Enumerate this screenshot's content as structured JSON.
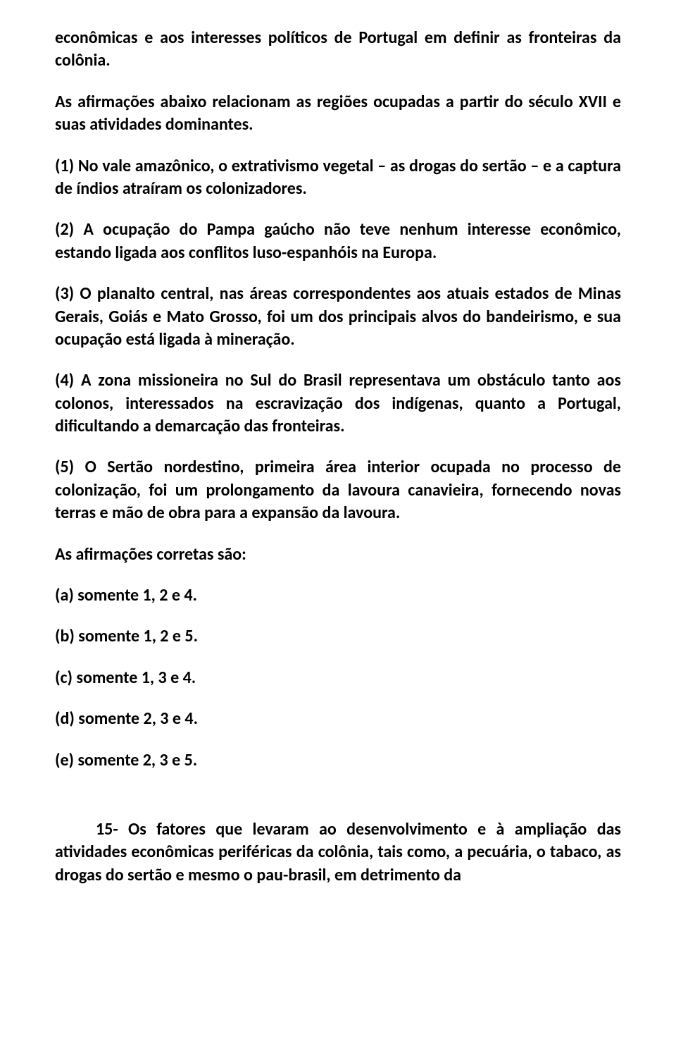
{
  "doc": {
    "text_color": "#000000",
    "background_color": "#ffffff",
    "font_family": "Calibri",
    "intro1": "econômicas e aos interesses políticos de Portugal em definir as fronteiras da colônia.",
    "intro2": "As afirmações abaixo relacionam as regiões ocupadas a partir do século XVII e suas atividades dominantes.",
    "stmt1": "(1) No vale amazônico, o extrativismo vegetal – as drogas do sertão – e a captura de índios atraíram os colonizadores.",
    "stmt2": "(2) A ocupação do Pampa gaúcho não teve nenhum interesse econômico, estando ligada aos conflitos luso-espanhóis na Europa.",
    "stmt3": "(3) O planalto central, nas áreas correspondentes aos atuais estados de Minas Gerais, Goiás e Mato Grosso, foi um dos principais alvos do bandeirismo, e sua ocupação está ligada à mineração.",
    "stmt4": "(4) A zona missioneira no Sul do Brasil representava um obstáculo tanto aos colonos, interessados na escravização dos indígenas, quanto a Portugal, dificultando a demarcação das fronteiras.",
    "stmt5": "(5) O Sertão nordestino, primeira área interior ocupada no processo de colonização, foi um prolongamento da lavoura canavieira, fornecendo novas terras e mão de obra para a expansão da lavoura.",
    "prompt": "As afirmações corretas são:",
    "optA": "(a) somente 1, 2 e 4.",
    "optB": "(b) somente 1, 2 e 5.",
    "optC": "(c) somente 1, 3 e 4.",
    "optD": "(d) somente 2, 3 e 4.",
    "optE": "(e) somente 2, 3 e 5.",
    "q15": "15- Os fatores que levaram ao desenvolvimento e à ampliação das atividades econômicas periféricas da colônia, tais como, a pecuária, o tabaco, as drogas do sertão e mesmo o pau-brasil, em detrimento da"
  }
}
